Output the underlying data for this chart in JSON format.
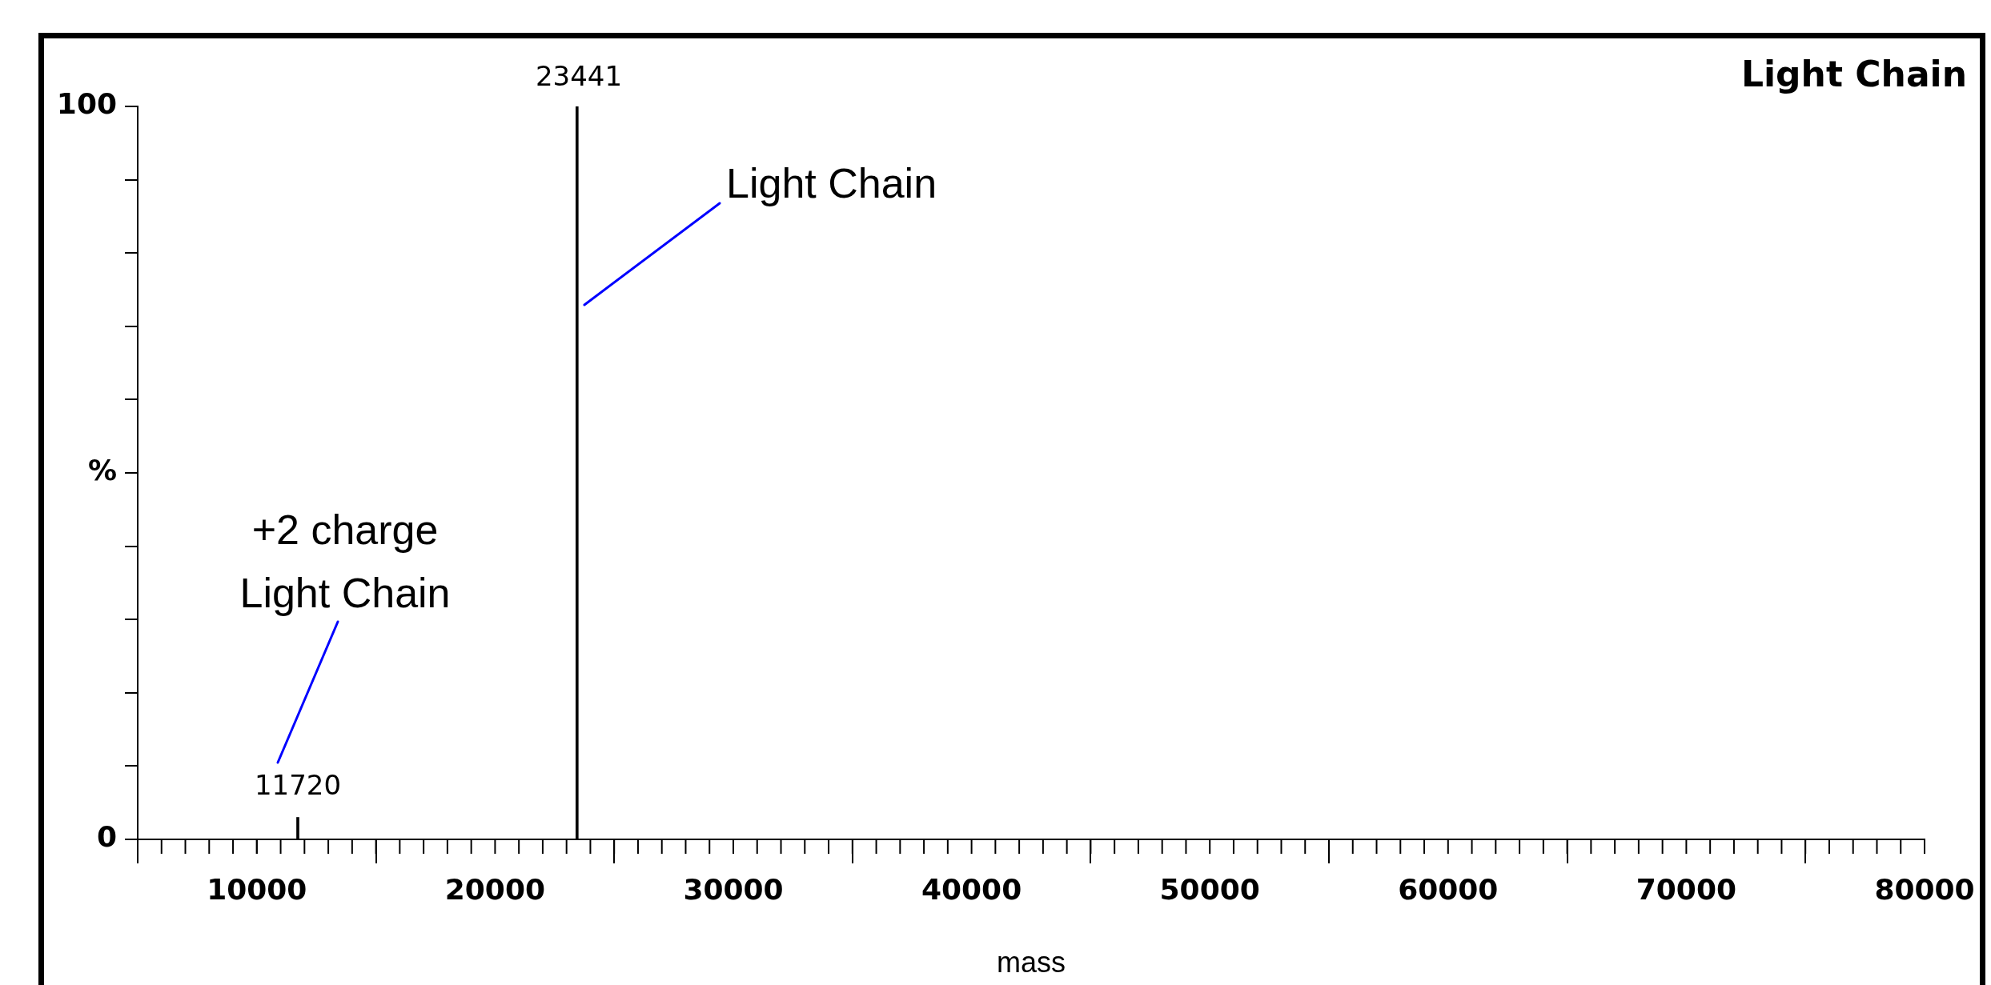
{
  "chart_data": {
    "type": "bar",
    "title": "Light Chain",
    "xlabel": "mass",
    "x": [
      11720,
      23441
    ],
    "series": [
      {
        "color": "#000000",
        "values": [
          3,
          100
        ]
      }
    ],
    "xlim": [
      5000,
      80000
    ],
    "xticks": [
      10000,
      20000,
      30000,
      40000,
      50000,
      60000,
      70000,
      80000
    ],
    "ylim": [
      0,
      100
    ],
    "yticks": [
      0,
      {
        "value": 10,
        "label": null
      },
      {
        "value": 20,
        "label": null
      },
      {
        "value": 30,
        "label": null
      },
      {
        "value": 40,
        "label": null
      },
      {
        "value": 50,
        "label": "%"
      },
      {
        "value": 60,
        "label": null
      },
      {
        "value": 70,
        "label": null
      },
      {
        "value": 80,
        "label": null
      },
      {
        "value": 90,
        "label": null
      },
      100
    ],
    "legend": false,
    "annotations": [
      "23441",
      "11720",
      "Light Chain",
      "+2 charge\nLight Chain"
    ]
  }
}
